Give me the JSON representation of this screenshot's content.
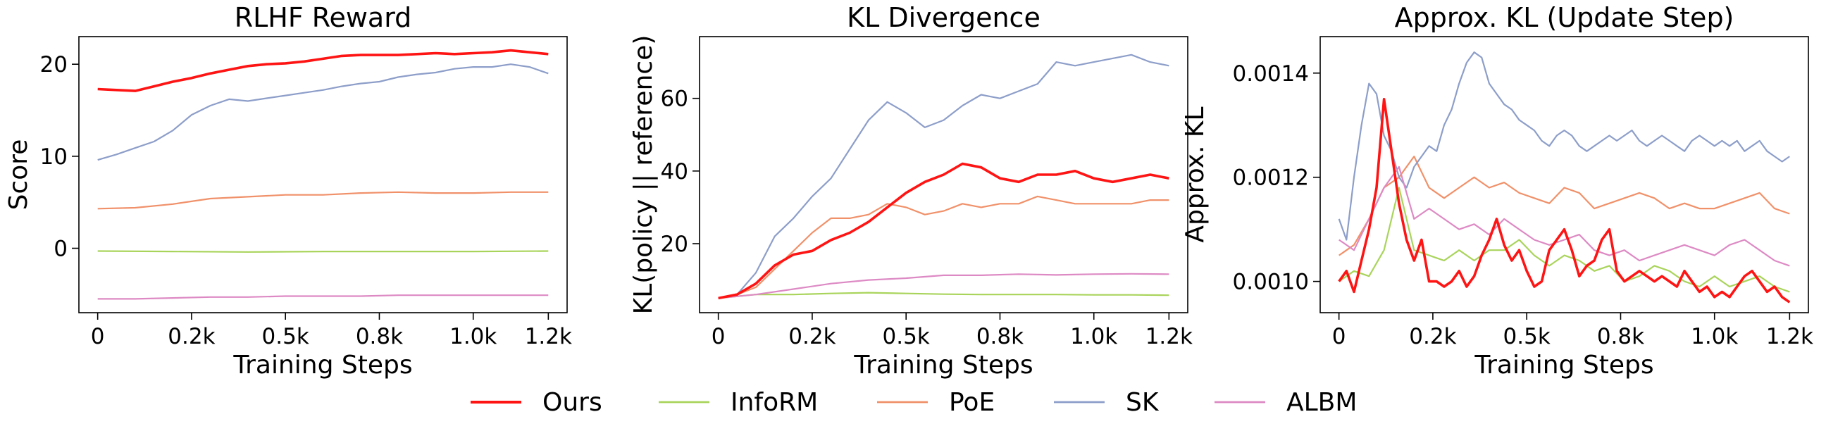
{
  "legend": [
    {
      "name": "Ours",
      "color": "#ff1414"
    },
    {
      "name": "InfoRM",
      "color": "#a9d45b"
    },
    {
      "name": "PoE",
      "color": "#f0916a"
    },
    {
      "name": "SK",
      "color": "#8d9ec9"
    },
    {
      "name": "ALBM",
      "color": "#dd8ac4"
    }
  ],
  "chart_data": [
    {
      "type": "line",
      "title": "RLHF Reward",
      "xlabel": "Training Steps",
      "ylabel": "Score",
      "xlim": [
        -50,
        1250
      ],
      "ylim": [
        -7,
        23
      ],
      "xticks": [
        0,
        250,
        500,
        750,
        1000,
        1200
      ],
      "xticklabels": [
        "0",
        "0.2k",
        "0.5k",
        "0.8k",
        "1.0k",
        "1.2k"
      ],
      "yticks": [
        0,
        10,
        20
      ],
      "yticklabels": [
        "0",
        "10",
        "20"
      ],
      "series": [
        {
          "name": "Ours",
          "x": [
            0,
            50,
            100,
            150,
            200,
            250,
            300,
            350,
            400,
            450,
            500,
            550,
            600,
            650,
            700,
            750,
            800,
            850,
            900,
            950,
            1000,
            1050,
            1100,
            1150,
            1200
          ],
          "y": [
            17.3,
            17.2,
            17.1,
            17.6,
            18.1,
            18.5,
            19.0,
            19.4,
            19.8,
            20.0,
            20.1,
            20.3,
            20.6,
            20.9,
            21.0,
            21.0,
            21.0,
            21.1,
            21.2,
            21.1,
            21.2,
            21.3,
            21.5,
            21.3,
            21.1
          ]
        },
        {
          "name": "InfoRM",
          "x": [
            0,
            200,
            400,
            600,
            800,
            1000,
            1200
          ],
          "y": [
            -0.3,
            -0.35,
            -0.4,
            -0.35,
            -0.35,
            -0.35,
            -0.3
          ]
        },
        {
          "name": "PoE",
          "x": [
            0,
            100,
            200,
            300,
            400,
            500,
            600,
            700,
            800,
            900,
            1000,
            1100,
            1200
          ],
          "y": [
            4.3,
            4.4,
            4.8,
            5.4,
            5.6,
            5.8,
            5.8,
            6.0,
            6.1,
            6.0,
            6.0,
            6.1,
            6.1
          ]
        },
        {
          "name": "SK",
          "x": [
            0,
            50,
            100,
            150,
            200,
            250,
            300,
            350,
            400,
            450,
            500,
            550,
            600,
            650,
            700,
            750,
            800,
            850,
            900,
            950,
            1000,
            1050,
            1100,
            1150,
            1200
          ],
          "y": [
            9.6,
            10.2,
            10.9,
            11.6,
            12.8,
            14.5,
            15.5,
            16.2,
            16.0,
            16.3,
            16.6,
            16.9,
            17.2,
            17.6,
            17.9,
            18.1,
            18.6,
            18.9,
            19.1,
            19.5,
            19.7,
            19.7,
            20.0,
            19.7,
            19.0
          ]
        },
        {
          "name": "ALBM",
          "x": [
            0,
            100,
            200,
            300,
            400,
            500,
            600,
            700,
            800,
            900,
            1000,
            1100,
            1200
          ],
          "y": [
            -5.5,
            -5.5,
            -5.4,
            -5.3,
            -5.3,
            -5.2,
            -5.2,
            -5.2,
            -5.1,
            -5.1,
            -5.1,
            -5.1,
            -5.1
          ]
        }
      ]
    },
    {
      "type": "line",
      "title": "KL Divergence",
      "xlabel": "Training Steps",
      "ylabel": "KL(policy || reference)",
      "xlim": [
        -50,
        1250
      ],
      "ylim": [
        1,
        77
      ],
      "xticks": [
        0,
        250,
        500,
        750,
        1000,
        1200
      ],
      "xticklabels": [
        "0",
        "0.2k",
        "0.5k",
        "0.8k",
        "1.0k",
        "1.2k"
      ],
      "yticks": [
        20,
        40,
        60
      ],
      "yticklabels": [
        "20",
        "40",
        "60"
      ],
      "series": [
        {
          "name": "Ours",
          "x": [
            0,
            50,
            100,
            150,
            200,
            250,
            300,
            350,
            400,
            450,
            500,
            550,
            600,
            650,
            700,
            750,
            800,
            850,
            900,
            950,
            1000,
            1050,
            1100,
            1150,
            1200
          ],
          "y": [
            5,
            6,
            9,
            14,
            17,
            18,
            21,
            23,
            26,
            30,
            34,
            37,
            39,
            42,
            41,
            38,
            37,
            39,
            39,
            40,
            38,
            37,
            38,
            39,
            38
          ]
        },
        {
          "name": "InfoRM",
          "x": [
            0,
            100,
            200,
            300,
            400,
            500,
            600,
            700,
            800,
            900,
            1000,
            1100,
            1200
          ],
          "y": [
            5,
            6,
            6,
            6.3,
            6.5,
            6.3,
            6.1,
            6.0,
            6.0,
            6.0,
            5.9,
            5.9,
            5.8
          ]
        },
        {
          "name": "PoE",
          "x": [
            0,
            50,
            100,
            150,
            200,
            250,
            300,
            350,
            400,
            450,
            500,
            550,
            600,
            650,
            700,
            750,
            800,
            850,
            900,
            950,
            1000,
            1050,
            1100,
            1150,
            1200
          ],
          "y": [
            5,
            6,
            8,
            13,
            18,
            23,
            27,
            27,
            28,
            31,
            30,
            28,
            29,
            31,
            30,
            31,
            31,
            33,
            32,
            31,
            31,
            31,
            31,
            32,
            32
          ]
        },
        {
          "name": "SK",
          "x": [
            0,
            50,
            100,
            150,
            200,
            250,
            300,
            350,
            400,
            450,
            500,
            550,
            600,
            650,
            700,
            750,
            800,
            850,
            900,
            950,
            1000,
            1050,
            1100,
            1150,
            1200
          ],
          "y": [
            5,
            6,
            12,
            22,
            27,
            33,
            38,
            46,
            54,
            59,
            56,
            52,
            54,
            58,
            61,
            60,
            62,
            64,
            70,
            69,
            70,
            71,
            72,
            70,
            69
          ]
        },
        {
          "name": "ALBM",
          "x": [
            0,
            100,
            200,
            300,
            400,
            500,
            600,
            700,
            800,
            900,
            1000,
            1100,
            1200
          ],
          "y": [
            5,
            6,
            7.5,
            9,
            10,
            10.5,
            11.3,
            11.3,
            11.6,
            11.4,
            11.6,
            11.7,
            11.6
          ]
        }
      ]
    },
    {
      "type": "line",
      "title": "Approx. KL (Update Step)",
      "xlabel": "Training Steps",
      "ylabel": "Approx. KL",
      "xlim": [
        -50,
        1250
      ],
      "ylim": [
        0.00094,
        0.00147
      ],
      "xticks": [
        0,
        250,
        500,
        750,
        1000,
        1200
      ],
      "xticklabels": [
        "0",
        "0.2k",
        "0.5k",
        "0.8k",
        "1.0k",
        "1.2k"
      ],
      "yticks": [
        0.001,
        0.0012,
        0.0014
      ],
      "yticklabels": [
        "0.0010",
        "0.0012",
        "0.0014"
      ],
      "series": [
        {
          "name": "Ours",
          "x": [
            0,
            20,
            40,
            60,
            80,
            100,
            120,
            140,
            160,
            180,
            200,
            220,
            240,
            260,
            280,
            300,
            320,
            340,
            360,
            380,
            400,
            420,
            440,
            460,
            480,
            500,
            520,
            540,
            560,
            580,
            600,
            620,
            640,
            660,
            680,
            700,
            720,
            740,
            760,
            780,
            800,
            820,
            840,
            860,
            880,
            900,
            920,
            940,
            960,
            980,
            1000,
            1020,
            1040,
            1060,
            1080,
            1100,
            1120,
            1140,
            1160,
            1180,
            1200
          ],
          "y": [
            0.001,
            0.00102,
            0.00098,
            0.00104,
            0.0011,
            0.00118,
            0.00135,
            0.00125,
            0.00115,
            0.00108,
            0.00104,
            0.00108,
            0.001,
            0.001,
            0.00099,
            0.001,
            0.00102,
            0.00099,
            0.00101,
            0.00105,
            0.00108,
            0.00112,
            0.00107,
            0.00104,
            0.00106,
            0.00102,
            0.00099,
            0.001,
            0.00106,
            0.00108,
            0.0011,
            0.00106,
            0.00101,
            0.00103,
            0.00104,
            0.00108,
            0.0011,
            0.00102,
            0.001,
            0.00101,
            0.00102,
            0.00101,
            0.001,
            0.00101,
            0.001,
            0.00099,
            0.00102,
            0.001,
            0.00098,
            0.00099,
            0.00097,
            0.00098,
            0.00097,
            0.00099,
            0.00101,
            0.00102,
            0.001,
            0.00098,
            0.00099,
            0.00097,
            0.00096
          ]
        },
        {
          "name": "InfoRM",
          "x": [
            0,
            40,
            80,
            120,
            160,
            200,
            240,
            280,
            320,
            360,
            400,
            440,
            480,
            520,
            560,
            600,
            640,
            680,
            720,
            760,
            800,
            840,
            880,
            920,
            960,
            1000,
            1040,
            1080,
            1120,
            1160,
            1200
          ],
          "y": [
            0.001,
            0.00102,
            0.00101,
            0.00106,
            0.00118,
            0.00106,
            0.00105,
            0.00104,
            0.00106,
            0.00104,
            0.00106,
            0.00106,
            0.00108,
            0.00105,
            0.00103,
            0.00105,
            0.00104,
            0.00102,
            0.00103,
            0.001,
            0.00101,
            0.00103,
            0.00102,
            0.001,
            0.00099,
            0.00101,
            0.00099,
            0.001,
            0.00101,
            0.00099,
            0.00098
          ]
        },
        {
          "name": "PoE",
          "x": [
            0,
            40,
            80,
            120,
            160,
            200,
            240,
            280,
            320,
            360,
            400,
            440,
            480,
            520,
            560,
            600,
            640,
            680,
            720,
            760,
            800,
            840,
            880,
            920,
            960,
            1000,
            1040,
            1080,
            1120,
            1160,
            1200
          ],
          "y": [
            0.00105,
            0.00107,
            0.00112,
            0.00118,
            0.0012,
            0.00124,
            0.00118,
            0.00116,
            0.00118,
            0.0012,
            0.00118,
            0.00119,
            0.00117,
            0.00116,
            0.00115,
            0.00118,
            0.00117,
            0.00114,
            0.00115,
            0.00116,
            0.00117,
            0.00116,
            0.00114,
            0.00115,
            0.00114,
            0.00114,
            0.00115,
            0.00116,
            0.00117,
            0.00114,
            0.00113
          ]
        },
        {
          "name": "SK",
          "x": [
            0,
            20,
            40,
            60,
            80,
            100,
            120,
            140,
            160,
            180,
            200,
            220,
            240,
            260,
            280,
            300,
            320,
            340,
            360,
            380,
            400,
            420,
            440,
            460,
            480,
            500,
            520,
            540,
            560,
            580,
            600,
            620,
            640,
            660,
            680,
            700,
            720,
            740,
            760,
            780,
            800,
            820,
            840,
            860,
            880,
            900,
            920,
            940,
            960,
            980,
            1000,
            1020,
            1040,
            1060,
            1080,
            1100,
            1120,
            1140,
            1160,
            1180,
            1200
          ],
          "y": [
            0.00112,
            0.00108,
            0.0012,
            0.0013,
            0.00138,
            0.00136,
            0.00128,
            0.00125,
            0.0012,
            0.00118,
            0.00122,
            0.00124,
            0.00126,
            0.00125,
            0.0013,
            0.00133,
            0.00138,
            0.00142,
            0.00144,
            0.00143,
            0.00138,
            0.00136,
            0.00134,
            0.00133,
            0.00131,
            0.0013,
            0.00129,
            0.00127,
            0.00126,
            0.00128,
            0.00129,
            0.00128,
            0.00126,
            0.00125,
            0.00126,
            0.00127,
            0.00128,
            0.00127,
            0.00128,
            0.00129,
            0.00127,
            0.00126,
            0.00127,
            0.00128,
            0.00127,
            0.00126,
            0.00125,
            0.00127,
            0.00128,
            0.00127,
            0.00126,
            0.00127,
            0.00126,
            0.00127,
            0.00125,
            0.00126,
            0.00127,
            0.00125,
            0.00124,
            0.00123,
            0.00124
          ]
        },
        {
          "name": "ALBM",
          "x": [
            0,
            40,
            80,
            120,
            160,
            200,
            240,
            280,
            320,
            360,
            400,
            440,
            480,
            520,
            560,
            600,
            640,
            680,
            720,
            760,
            800,
            840,
            880,
            920,
            960,
            1000,
            1040,
            1080,
            1120,
            1160,
            1200
          ],
          "y": [
            0.00108,
            0.00106,
            0.00112,
            0.00118,
            0.00122,
            0.00112,
            0.00114,
            0.00112,
            0.0011,
            0.00111,
            0.00109,
            0.00112,
            0.0011,
            0.00108,
            0.00107,
            0.00108,
            0.00109,
            0.00106,
            0.00105,
            0.00106,
            0.00104,
            0.00105,
            0.00106,
            0.00107,
            0.00106,
            0.00105,
            0.00107,
            0.00108,
            0.00106,
            0.00104,
            0.00103
          ]
        }
      ]
    }
  ]
}
